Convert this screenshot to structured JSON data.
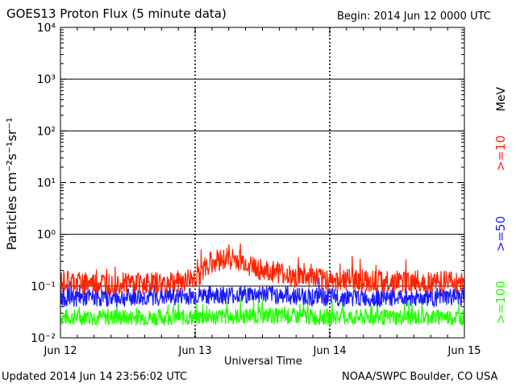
{
  "header": {
    "title": "GOES13 Proton Flux (5 minute data)",
    "begin": "Begin: 2014 Jun 12 0000 UTC"
  },
  "footer": {
    "updated": "Updated 2014 Jun 14 23:56:02 UTC",
    "credit": "NOAA/SWPC Boulder, CO USA"
  },
  "axes": {
    "xlabel": "Universal Time",
    "ylabel": "Particles cm⁻²s⁻¹sr⁻¹",
    "unit": "MeV"
  },
  "chart_data": {
    "type": "line",
    "title": "GOES13 Proton Flux (5 minute data)",
    "xlabel": "Universal Time",
    "ylabel": "Particles cm⁻²s⁻¹sr⁻¹",
    "yscale": "log",
    "ylim": [
      0.01,
      10000
    ],
    "xlim": [
      "2014-06-12",
      "2014-06-15"
    ],
    "x_ticks": [
      "Jun 12",
      "Jun 13",
      "Jun 14",
      "Jun 15"
    ],
    "y_ticks": [
      "10⁻²",
      "10⁻¹",
      "10⁰",
      "10¹",
      "10²",
      "10³",
      "10⁴"
    ],
    "grid": "horizontal at decades, dashed at 10¹",
    "legend_placement": "right",
    "series": [
      {
        "name": ">=10",
        "color": "#ff2200",
        "x": [
          "2014-06-12T00:00",
          "2014-06-12T06:00",
          "2014-06-12T12:00",
          "2014-06-12T18:00",
          "2014-06-13T00:00",
          "2014-06-13T03:00",
          "2014-06-13T06:00",
          "2014-06-13T09:00",
          "2014-06-13T12:00",
          "2014-06-13T18:00",
          "2014-06-14T00:00",
          "2014-06-14T06:00",
          "2014-06-14T12:00",
          "2014-06-14T18:00",
          "2014-06-15T00:00"
        ],
        "values": [
          0.12,
          0.11,
          0.12,
          0.11,
          0.14,
          0.3,
          0.35,
          0.28,
          0.2,
          0.15,
          0.13,
          0.13,
          0.12,
          0.12,
          0.12
        ]
      },
      {
        "name": ">=50",
        "color": "#1a1aff",
        "x": [
          "2014-06-12T00:00",
          "2014-06-12T12:00",
          "2014-06-13T00:00",
          "2014-06-13T12:00",
          "2014-06-14T00:00",
          "2014-06-14T12:00",
          "2014-06-15T00:00"
        ],
        "values": [
          0.06,
          0.06,
          0.065,
          0.07,
          0.06,
          0.06,
          0.06
        ]
      },
      {
        "name": ">=100",
        "color": "#22ff00",
        "x": [
          "2014-06-12T00:00",
          "2014-06-12T12:00",
          "2014-06-13T00:00",
          "2014-06-13T12:00",
          "2014-06-14T00:00",
          "2014-06-14T12:00",
          "2014-06-15T00:00"
        ],
        "values": [
          0.025,
          0.025,
          0.025,
          0.027,
          0.025,
          0.025,
          0.025
        ]
      }
    ]
  }
}
